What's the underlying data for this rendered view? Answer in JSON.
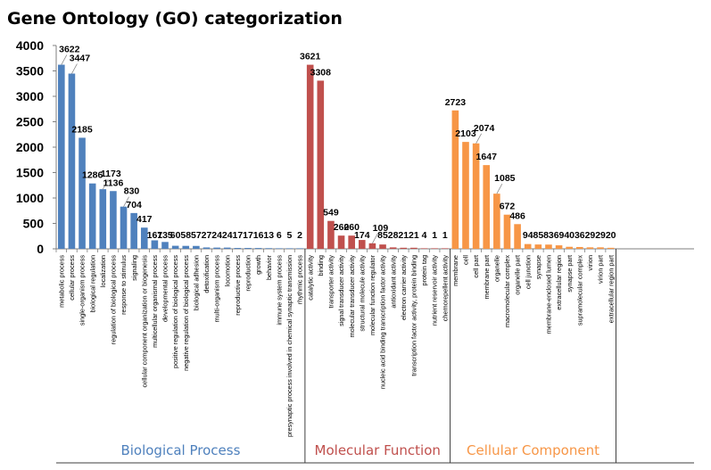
{
  "chart_data": {
    "type": "bar",
    "title": "Gene Ontology (GO) categorization",
    "xlabel": "",
    "ylabel": "",
    "ylim": [
      0,
      4000
    ],
    "yticks": [
      0,
      500,
      1000,
      1500,
      2000,
      2500,
      3000,
      3500,
      4000
    ],
    "grid": false,
    "colors": {
      "biological_process": "#4f81bd",
      "molecular_function": "#c0504d",
      "cellular_component": "#f79646",
      "axis": "#7f7f7f",
      "text": "#000000"
    },
    "groups": [
      {
        "key": "biological_process",
        "name": "Biological Process",
        "categories": [
          "metabolic process",
          "cellular process",
          "single-organism process",
          "biological regulation",
          "localization",
          "regulation of biological process",
          "response to stimulus",
          "signaling",
          "cellular component organization or biogenesis",
          "multicellular organismal process",
          "developmental process",
          "positive regulation of biological process",
          "negative regulation of biological process",
          "biological adhesion",
          "detoxification",
          "multi-organism process",
          "locomotion",
          "reproductive process",
          "reproduction",
          "growth",
          "behavior",
          "immune system process",
          "presynaptic process involved in chemical synaptic transmission",
          "rhythmic process"
        ],
        "values": [
          3622,
          3447,
          2185,
          1286,
          1173,
          1136,
          830,
          704,
          417,
          167,
          135,
          60,
          58,
          57,
          27,
          24,
          24,
          17,
          17,
          16,
          13,
          6,
          5,
          2
        ]
      },
      {
        "key": "molecular_function",
        "name": "Molecular Function",
        "categories": [
          "catalytic activity",
          "binding",
          "transporter activity",
          "signal transducer activity",
          "molecular transducer activity",
          "structural molecule activity",
          "molecular function regulator",
          "nucleic acid binding transcription factor activity",
          "antioxidant activity",
          "electron carrier activity",
          "transcription factor activity, protein binding",
          "protein tag",
          "nutrient reservoir activity",
          "chemorepellent activity"
        ],
        "values": [
          3621,
          3308,
          549,
          260,
          260,
          174,
          109,
          85,
          28,
          21,
          21,
          4,
          1,
          1
        ]
      },
      {
        "key": "cellular_component",
        "name": "Cellular Component",
        "categories": [
          "membrane",
          "cell",
          "cell part",
          "membrane part",
          "organelle",
          "macromolecular complex",
          "organelle part",
          "cell junction",
          "synapse",
          "membrane-enclosed lumen",
          "extracellular region",
          "synapse part",
          "supramolecular complex",
          "virion",
          "virion part",
          "extracellular region part"
        ],
        "values": [
          2723,
          2103,
          2074,
          1647,
          1085,
          672,
          486,
          94,
          85,
          83,
          69,
          40,
          36,
          29,
          29,
          20
        ]
      }
    ]
  }
}
